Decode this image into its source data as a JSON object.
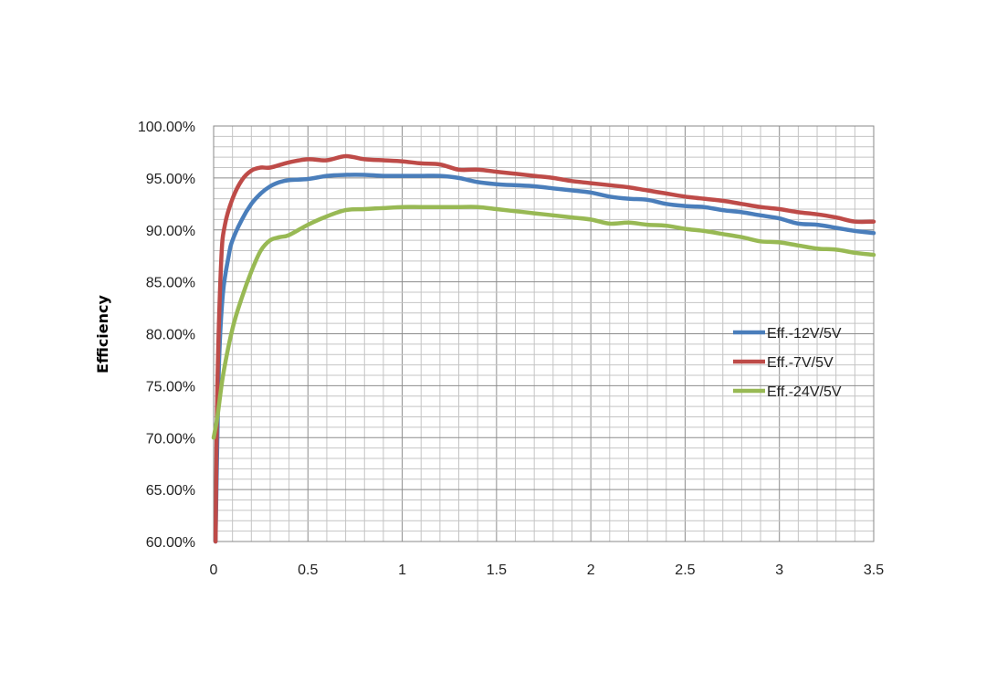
{
  "chart_data": {
    "type": "line",
    "title": "",
    "xlabel": "",
    "ylabel": "Efficiency",
    "xlim": [
      0,
      3.5
    ],
    "ylim": [
      60,
      100
    ],
    "x_ticks": [
      "0",
      "0.5",
      "1",
      "1.5",
      "2",
      "2.5",
      "3",
      "3.5"
    ],
    "y_ticks": [
      "60.00%",
      "65.00%",
      "70.00%",
      "75.00%",
      "80.00%",
      "85.00%",
      "90.00%",
      "95.00%",
      "100.00%"
    ],
    "grid": true,
    "legend_position": "right",
    "series": [
      {
        "name": "Eff.-12V/5V",
        "color": "#4a7ebb",
        "points": [
          [
            0.01,
            60
          ],
          [
            0.02,
            70
          ],
          [
            0.03,
            78
          ],
          [
            0.05,
            84
          ],
          [
            0.08,
            87.5
          ],
          [
            0.1,
            89
          ],
          [
            0.15,
            91
          ],
          [
            0.2,
            92.5
          ],
          [
            0.25,
            93.5
          ],
          [
            0.3,
            94.2
          ],
          [
            0.35,
            94.6
          ],
          [
            0.4,
            94.8
          ],
          [
            0.5,
            94.9
          ],
          [
            0.6,
            95.2
          ],
          [
            0.7,
            95.3
          ],
          [
            0.8,
            95.3
          ],
          [
            0.9,
            95.2
          ],
          [
            1.0,
            95.2
          ],
          [
            1.1,
            95.2
          ],
          [
            1.2,
            95.2
          ],
          [
            1.3,
            95.0
          ],
          [
            1.4,
            94.6
          ],
          [
            1.5,
            94.4
          ],
          [
            1.6,
            94.3
          ],
          [
            1.7,
            94.2
          ],
          [
            1.8,
            94.0
          ],
          [
            1.9,
            93.8
          ],
          [
            2.0,
            93.6
          ],
          [
            2.1,
            93.2
          ],
          [
            2.2,
            93.0
          ],
          [
            2.3,
            92.9
          ],
          [
            2.4,
            92.5
          ],
          [
            2.5,
            92.3
          ],
          [
            2.6,
            92.2
          ],
          [
            2.7,
            91.9
          ],
          [
            2.8,
            91.7
          ],
          [
            2.9,
            91.4
          ],
          [
            3.0,
            91.1
          ],
          [
            3.1,
            90.6
          ],
          [
            3.2,
            90.5
          ],
          [
            3.3,
            90.2
          ],
          [
            3.4,
            89.9
          ],
          [
            3.5,
            89.7
          ]
        ]
      },
      {
        "name": "Eff.-7V/5V",
        "color": "#be4b48",
        "points": [
          [
            0.01,
            60
          ],
          [
            0.02,
            75
          ],
          [
            0.04,
            87
          ],
          [
            0.06,
            90.5
          ],
          [
            0.1,
            93
          ],
          [
            0.15,
            94.8
          ],
          [
            0.2,
            95.7
          ],
          [
            0.25,
            96
          ],
          [
            0.3,
            96
          ],
          [
            0.4,
            96.5
          ],
          [
            0.5,
            96.8
          ],
          [
            0.6,
            96.7
          ],
          [
            0.7,
            97.1
          ],
          [
            0.8,
            96.8
          ],
          [
            0.9,
            96.7
          ],
          [
            1.0,
            96.6
          ],
          [
            1.1,
            96.4
          ],
          [
            1.2,
            96.3
          ],
          [
            1.3,
            95.8
          ],
          [
            1.4,
            95.8
          ],
          [
            1.5,
            95.6
          ],
          [
            1.6,
            95.4
          ],
          [
            1.7,
            95.2
          ],
          [
            1.8,
            95.0
          ],
          [
            1.9,
            94.7
          ],
          [
            2.0,
            94.5
          ],
          [
            2.1,
            94.3
          ],
          [
            2.2,
            94.1
          ],
          [
            2.3,
            93.8
          ],
          [
            2.4,
            93.5
          ],
          [
            2.5,
            93.2
          ],
          [
            2.6,
            93.0
          ],
          [
            2.7,
            92.8
          ],
          [
            2.8,
            92.5
          ],
          [
            2.9,
            92.2
          ],
          [
            3.0,
            92.0
          ],
          [
            3.1,
            91.7
          ],
          [
            3.2,
            91.5
          ],
          [
            3.3,
            91.2
          ],
          [
            3.4,
            90.8
          ],
          [
            3.5,
            90.8
          ]
        ]
      },
      {
        "name": "Eff.-24V/5V",
        "color": "#98b954",
        "points": [
          [
            0.0,
            70
          ],
          [
            0.02,
            72
          ],
          [
            0.05,
            76
          ],
          [
            0.1,
            80.5
          ],
          [
            0.15,
            83.5
          ],
          [
            0.2,
            86
          ],
          [
            0.25,
            88
          ],
          [
            0.3,
            89
          ],
          [
            0.35,
            89.3
          ],
          [
            0.4,
            89.5
          ],
          [
            0.5,
            90.5
          ],
          [
            0.6,
            91.3
          ],
          [
            0.7,
            91.9
          ],
          [
            0.8,
            92.0
          ],
          [
            0.9,
            92.1
          ],
          [
            1.0,
            92.2
          ],
          [
            1.1,
            92.2
          ],
          [
            1.2,
            92.2
          ],
          [
            1.3,
            92.2
          ],
          [
            1.4,
            92.2
          ],
          [
            1.5,
            92.0
          ],
          [
            1.6,
            91.8
          ],
          [
            1.7,
            91.6
          ],
          [
            1.8,
            91.4
          ],
          [
            1.9,
            91.2
          ],
          [
            2.0,
            91.0
          ],
          [
            2.1,
            90.6
          ],
          [
            2.2,
            90.7
          ],
          [
            2.3,
            90.5
          ],
          [
            2.4,
            90.4
          ],
          [
            2.5,
            90.1
          ],
          [
            2.6,
            89.9
          ],
          [
            2.7,
            89.6
          ],
          [
            2.8,
            89.3
          ],
          [
            2.9,
            88.9
          ],
          [
            3.0,
            88.8
          ],
          [
            3.1,
            88.5
          ],
          [
            3.2,
            88.2
          ],
          [
            3.3,
            88.1
          ],
          [
            3.4,
            87.8
          ],
          [
            3.5,
            87.6
          ]
        ]
      }
    ]
  }
}
